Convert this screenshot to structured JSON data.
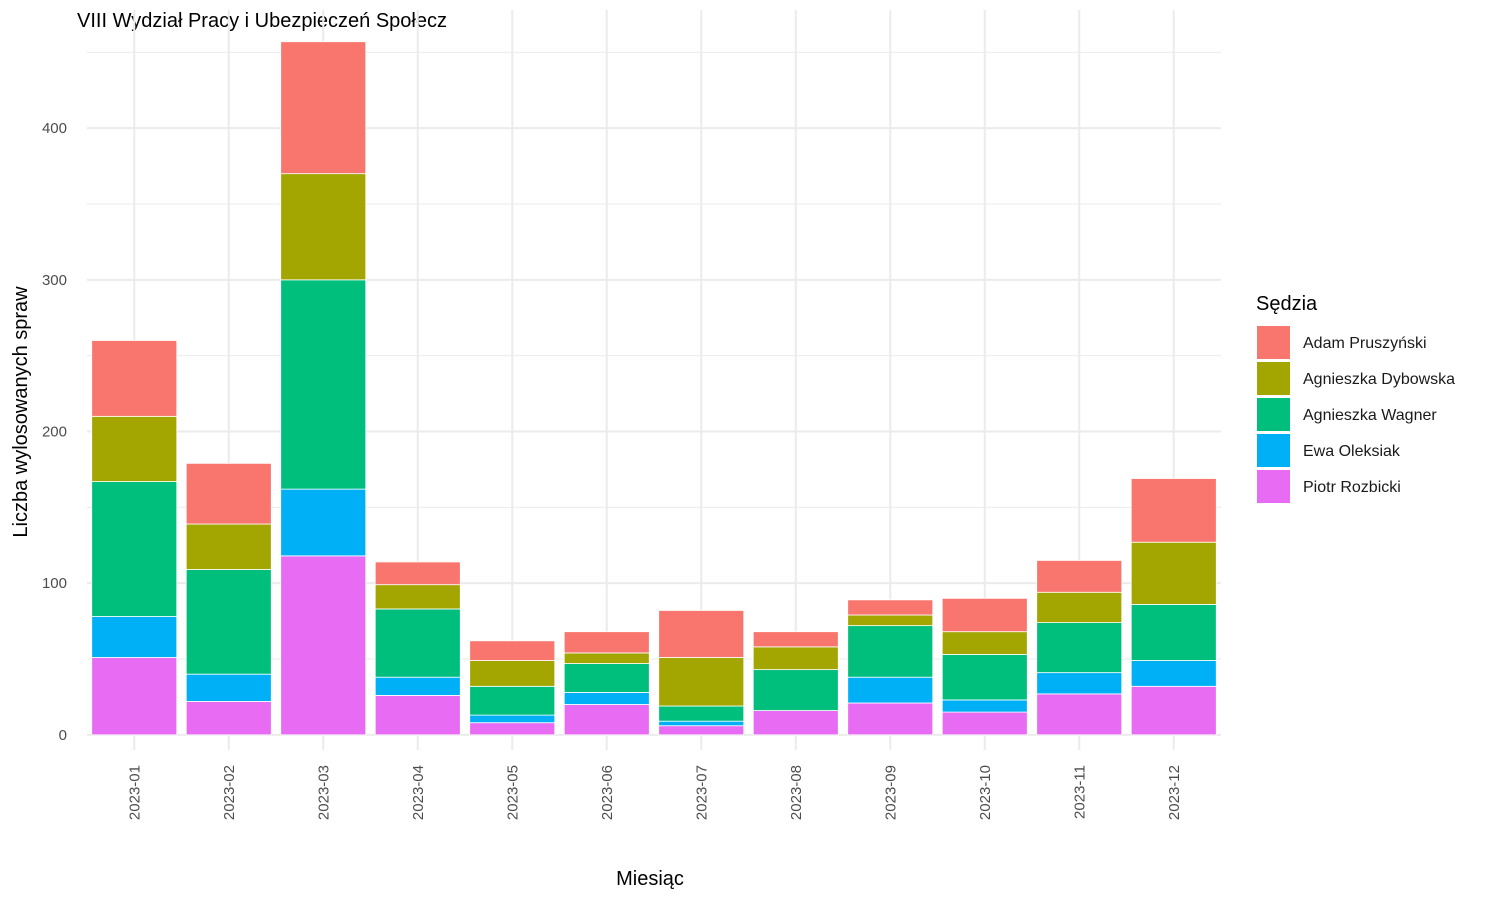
{
  "chart_data": {
    "type": "bar",
    "stacked": true,
    "title": "VIII Wydział Pracy i Ubezpieczeń Społecz",
    "xlabel": "Miesiąc",
    "ylabel": "Liczba wylosowanych spraw",
    "ylim": [
      0,
      460
    ],
    "yticks": [
      "0",
      "100",
      "200",
      "300",
      "400"
    ],
    "grid": true,
    "legend": {
      "title": "Sędzia",
      "position": "right"
    },
    "categories": [
      "2023-01",
      "2023-02",
      "2023-03",
      "2023-04",
      "2023-05",
      "2023-06",
      "2023-07",
      "2023-08",
      "2023-09",
      "2023-10",
      "2023-11",
      "2023-12"
    ],
    "series": [
      {
        "name": "Piotr Rozbicki",
        "color": "#E76BF3",
        "values": [
          51,
          22,
          118,
          26,
          8,
          20,
          6,
          16,
          21,
          15,
          27,
          32
        ]
      },
      {
        "name": "Ewa Oleksiak",
        "color": "#00B0F6",
        "values": [
          27,
          18,
          44,
          12,
          5,
          8,
          3,
          0,
          17,
          8,
          14,
          17
        ]
      },
      {
        "name": "Agnieszka Wagner",
        "color": "#00BF7D",
        "values": [
          89,
          69,
          138,
          45,
          19,
          19,
          10,
          27,
          34,
          30,
          33,
          37
        ]
      },
      {
        "name": "Agnieszka Dybowska",
        "color": "#A3A500",
        "values": [
          43,
          30,
          70,
          16,
          17,
          7,
          32,
          15,
          7,
          15,
          20,
          41
        ]
      },
      {
        "name": "Adam Pruszyński",
        "color": "#F8766D",
        "values": [
          50,
          40,
          87,
          15,
          13,
          14,
          31,
          10,
          10,
          22,
          21,
          42
        ]
      }
    ]
  }
}
